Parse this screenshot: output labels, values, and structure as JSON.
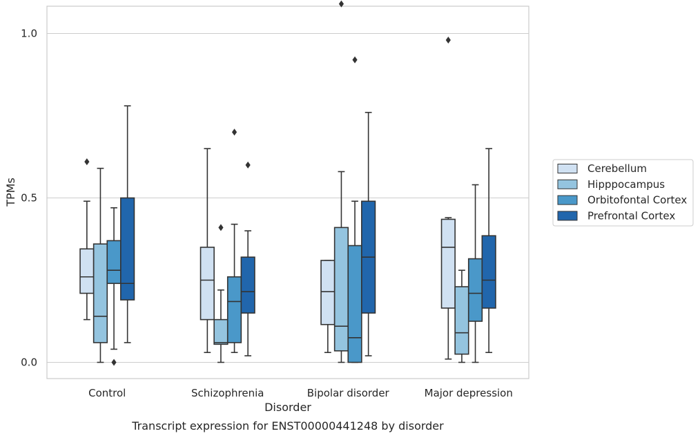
{
  "chart_data": {
    "type": "boxplot",
    "title": "Transcript expression for ENST00000441248 by disorder",
    "xlabel": "Disorder",
    "ylabel": "TPMs",
    "ylim": [
      -0.1,
      2.17
    ],
    "yticks": [
      "0.0",
      "0.5",
      "1.0",
      "1.5",
      "2.0"
    ],
    "categories": [
      "Control",
      "Schizophrenia",
      "Bipolar disorder",
      "Major depression"
    ],
    "grid": "horizontal",
    "legend_position": "right",
    "series": [
      {
        "name": "Cerebellum",
        "color": "#d0e1f2",
        "boxes": [
          {
            "whislo": 0.13,
            "q1": 0.21,
            "med": 0.26,
            "q3": 0.345,
            "whishi": 0.49,
            "fliers": [
              0.61
            ]
          },
          {
            "whislo": 0.03,
            "q1": 0.13,
            "med": 0.25,
            "q3": 0.35,
            "whishi": 0.65,
            "fliers": [
              1.68
            ]
          },
          {
            "whislo": 0.03,
            "q1": 0.115,
            "med": 0.215,
            "q3": 0.31,
            "whishi": 0.31,
            "fliers": [
              1.16,
              1.36,
              1.52
            ]
          },
          {
            "whislo": 0.01,
            "q1": 0.165,
            "med": 0.35,
            "q3": 0.435,
            "whishi": 0.44,
            "fliers": [
              0.98,
              1.37,
              1.7
            ]
          }
        ]
      },
      {
        "name": "Hipppocampus",
        "color": "#94c4df",
        "boxes": [
          {
            "whislo": 0.0,
            "q1": 0.06,
            "med": 0.14,
            "q3": 0.36,
            "whishi": 0.59,
            "fliers": []
          },
          {
            "whislo": 0.0,
            "q1": 0.055,
            "med": 0.06,
            "q3": 0.13,
            "whishi": 0.22,
            "fliers": [
              0.41
            ]
          },
          {
            "whislo": 0.0,
            "q1": 0.035,
            "med": 0.11,
            "q3": 0.41,
            "whishi": 0.58,
            "fliers": [
              1.09,
              1.65
            ]
          },
          {
            "whislo": 0.0,
            "q1": 0.025,
            "med": 0.09,
            "q3": 0.23,
            "whishi": 0.28,
            "fliers": []
          }
        ]
      },
      {
        "name": "Orbitofontal Cortex",
        "color": "#4a98c9",
        "boxes": [
          {
            "whislo": 0.04,
            "q1": 0.24,
            "med": 0.28,
            "q3": 0.37,
            "whishi": 0.47,
            "fliers": [
              0.0,
              1.41
            ]
          },
          {
            "whislo": 0.03,
            "q1": 0.06,
            "med": 0.185,
            "q3": 0.26,
            "whishi": 0.42,
            "fliers": [
              0.7
            ]
          },
          {
            "whislo": 0.0,
            "q1": 0.0,
            "med": 0.075,
            "q3": 0.355,
            "whishi": 0.49,
            "fliers": [
              0.92,
              2.06
            ]
          },
          {
            "whislo": 0.0,
            "q1": 0.125,
            "med": 0.21,
            "q3": 0.315,
            "whishi": 0.54,
            "fliers": []
          }
        ]
      },
      {
        "name": "Prefrontal Cortex",
        "color": "#2166ac",
        "boxes": [
          {
            "whislo": 0.06,
            "q1": 0.19,
            "med": 0.24,
            "q3": 0.5,
            "whishi": 0.78,
            "fliers": []
          },
          {
            "whislo": 0.02,
            "q1": 0.15,
            "med": 0.215,
            "q3": 0.32,
            "whishi": 0.4,
            "fliers": [
              0.6
            ]
          },
          {
            "whislo": 0.02,
            "q1": 0.15,
            "med": 0.32,
            "q3": 0.49,
            "whishi": 0.76,
            "fliers": [
              1.89
            ]
          },
          {
            "whislo": 0.03,
            "q1": 0.165,
            "med": 0.25,
            "q3": 0.385,
            "whishi": 0.65,
            "fliers": []
          }
        ]
      }
    ]
  }
}
